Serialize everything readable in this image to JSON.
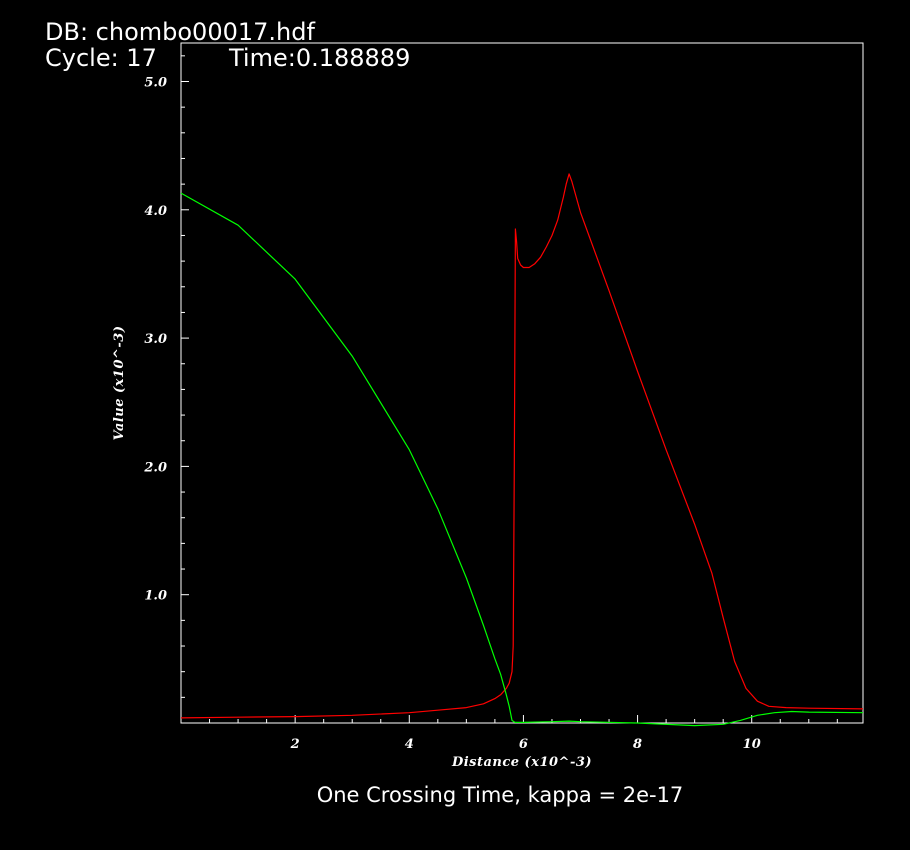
{
  "header": {
    "db": "DB: chombo00017.hdf",
    "cycle": "Cycle: 17",
    "time": "Time:0.188889"
  },
  "colors": {
    "background": "#000000",
    "frame": "#ffffff",
    "red_curve": "#ff0000",
    "green_curve": "#00ff00"
  },
  "chart_data": {
    "type": "line",
    "title": "",
    "subtitle": "One Crossing Time, kappa = 2e-17",
    "xlabel": "Distance (x10^-3)",
    "ylabel": "Value (x10^-3)",
    "xlim": [
      0.0,
      11.95
    ],
    "ylim": [
      0.0,
      5.3
    ],
    "x_ticks": [
      2,
      4,
      6,
      8,
      10
    ],
    "x_tick_labels": [
      "2",
      "4",
      "6",
      "8",
      "10"
    ],
    "y_ticks": [
      1.0,
      2.0,
      3.0,
      4.0,
      5.0
    ],
    "y_tick_labels": [
      "1.0",
      "2.0",
      "3.0",
      "4.0",
      "5.0"
    ],
    "grid": false,
    "legend": "none",
    "series": [
      {
        "color": "#ff0000",
        "x": [
          0.0,
          1.0,
          2.0,
          3.0,
          4.0,
          4.5,
          5.0,
          5.3,
          5.5,
          5.6,
          5.7,
          5.75,
          5.8,
          5.82,
          5.84,
          5.86,
          5.88,
          5.9,
          5.95,
          6.0,
          6.1,
          6.2,
          6.3,
          6.4,
          6.5,
          6.6,
          6.7,
          6.75,
          6.8,
          6.85,
          7.0,
          7.5,
          8.0,
          8.5,
          9.0,
          9.3,
          9.5,
          9.7,
          9.9,
          10.1,
          10.3,
          10.6,
          11.0,
          11.95
        ],
        "values": [
          0.04,
          0.045,
          0.05,
          0.06,
          0.08,
          0.1,
          0.12,
          0.15,
          0.19,
          0.22,
          0.27,
          0.31,
          0.4,
          0.6,
          2.0,
          3.85,
          3.75,
          3.62,
          3.57,
          3.55,
          3.55,
          3.58,
          3.63,
          3.71,
          3.8,
          3.92,
          4.1,
          4.2,
          4.28,
          4.22,
          3.98,
          3.37,
          2.74,
          2.13,
          1.55,
          1.17,
          0.82,
          0.48,
          0.27,
          0.17,
          0.13,
          0.12,
          0.115,
          0.11
        ]
      },
      {
        "color": "#00ff00",
        "x": [
          0.0,
          1.0,
          2.0,
          3.0,
          4.0,
          4.5,
          5.0,
          5.3,
          5.5,
          5.6,
          5.7,
          5.75,
          5.8,
          5.85,
          6.0,
          6.5,
          6.8,
          7.0,
          8.0,
          9.0,
          9.5,
          9.8,
          10.1,
          10.4,
          10.7,
          11.0,
          11.95
        ],
        "values": [
          4.13,
          3.88,
          3.46,
          2.86,
          2.13,
          1.67,
          1.13,
          0.76,
          0.5,
          0.38,
          0.22,
          0.13,
          0.02,
          0.005,
          0.005,
          0.01,
          0.015,
          0.01,
          0.0,
          -0.02,
          -0.01,
          0.02,
          0.06,
          0.08,
          0.09,
          0.085,
          0.08
        ]
      }
    ]
  }
}
